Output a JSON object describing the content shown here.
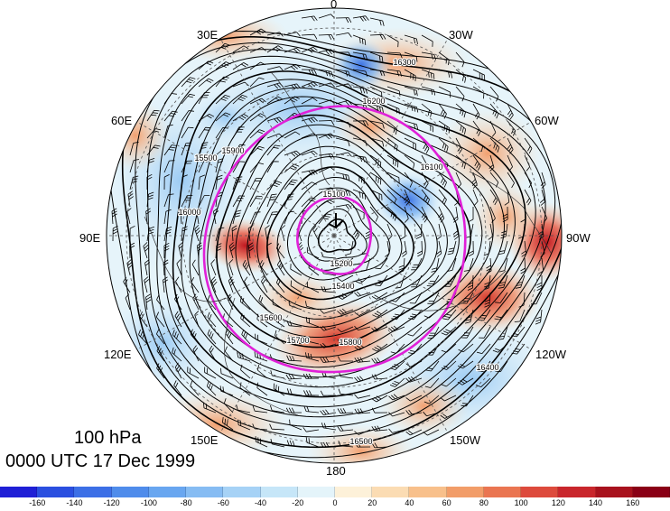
{
  "caption": {
    "level": "100 hPa",
    "time": "0000 UTC 17 Dec 1999"
  },
  "longitude_labels": {
    "0": "0",
    "30W": "30W",
    "60W": "60W",
    "90W": "90W",
    "120W": "120W",
    "150W": "150W",
    "180": "180",
    "150E": "150E",
    "120E": "120E",
    "90E": "90E",
    "60E": "60E",
    "30E": "30E"
  },
  "contour_labels": [
    "15100",
    "15200",
    "15400",
    "15500",
    "15600",
    "15700",
    "15800",
    "15900",
    "16000",
    "16100",
    "16200",
    "16300",
    "16400",
    "16500"
  ],
  "colorbar": {
    "ticks": [
      "-160",
      "-140",
      "-120",
      "-100",
      "-80",
      "-60",
      "-40",
      "-20",
      "0",
      "20",
      "40",
      "60",
      "80",
      "100",
      "120",
      "140",
      "160"
    ],
    "colors": [
      "#1f1fd6",
      "#2a4fe0",
      "#3c6fe6",
      "#4f8ceb",
      "#68a6f0",
      "#86bcf3",
      "#a6d2f6",
      "#c6e6f8",
      "#e4f4fa",
      "#fdf1d9",
      "#fbdcb3",
      "#f8c08b",
      "#f29d69",
      "#ea7551",
      "#dd4a3c",
      "#c9262c",
      "#a8121d",
      "#8a0016"
    ]
  },
  "color_scale": {
    "min": -160,
    "max": 160,
    "step": 20
  }
}
